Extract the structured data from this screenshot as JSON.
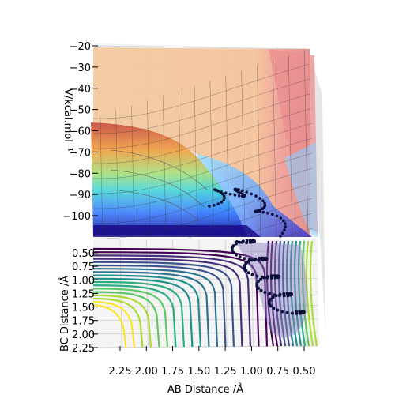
{
  "chart_data": {
    "type": "surface",
    "title": "",
    "z_axis": {
      "label": "V/kcal.mol$^{-1}$",
      "label_display": "V/kcal.mol⁻¹",
      "ticks": [
        -20,
        -30,
        -40,
        -50,
        -60,
        -70,
        -80,
        -90,
        -100
      ],
      "tick_labels": [
        "−20",
        "−30",
        "−40",
        "−50",
        "−60",
        "−70",
        "−80",
        "−90",
        "−100"
      ],
      "range": [
        -105,
        -20
      ]
    },
    "x_axis": {
      "label": "AB Distance /Å",
      "ticks": [
        2.25,
        2.0,
        1.75,
        1.5,
        1.25,
        1.0,
        0.75,
        0.5
      ],
      "tick_labels": [
        "2.25",
        "2.00",
        "1.75",
        "1.50",
        "1.25",
        "1.00",
        "0.75",
        "0.50"
      ],
      "range": [
        0.45,
        2.45
      ]
    },
    "y_axis": {
      "label": "BC Distance /Å",
      "ticks": [
        0.5,
        0.75,
        1.0,
        1.25,
        1.5,
        1.75,
        2.0,
        2.25
      ],
      "tick_labels": [
        "0.50",
        "0.75",
        "1.00",
        "1.25",
        "1.50",
        "1.75",
        "2.00",
        "2.25"
      ],
      "range": [
        0.45,
        2.3
      ]
    },
    "surface": {
      "colormap": "jet",
      "contour_colormap": "viridis",
      "minimum_energy": -103,
      "trajectory_color": "#0b0f3a"
    },
    "grid": true,
    "legend": "none"
  }
}
